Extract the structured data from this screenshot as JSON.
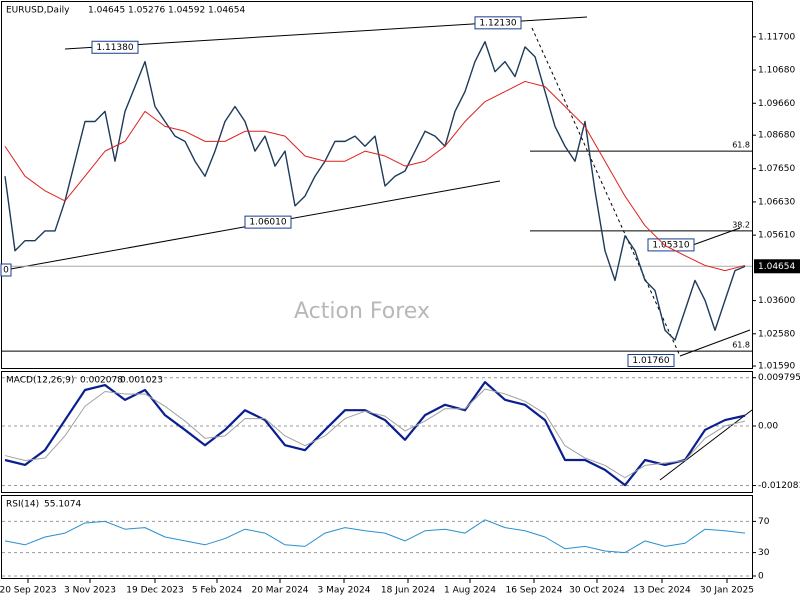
{
  "chart_data": [
    {
      "type": "line",
      "title": "EURUSD,Daily",
      "quote": [
        1.04645,
        1.05276,
        1.04592,
        1.04654
      ],
      "watermark": "Action Forex",
      "xtick_labels": [
        "20 Sep 2023",
        "3 Nov 2023",
        "19 Dec 2023",
        "5 Feb 2024",
        "20 Mar 2024",
        "3 May 2024",
        "18 Jun 2024",
        "1 Aug 2024",
        "16 Sep 2024",
        "30 Oct 2024",
        "13 Dec 2024",
        "30 Jan 2025"
      ],
      "ylim": [
        1.0153,
        1.1277
      ],
      "yticks": [
        {
          "value": 1.117,
          "label": "1.11700"
        },
        {
          "value": 1.1068,
          "label": "1.10680"
        },
        {
          "value": 1.0966,
          "label": "1.09660"
        },
        {
          "value": 1.0868,
          "label": "1.08680"
        },
        {
          "value": 1.0765,
          "label": "1.07650"
        },
        {
          "value": 1.0663,
          "label": "1.06630"
        },
        {
          "value": 1.0561,
          "label": "1.05610"
        },
        {
          "value": 1.036,
          "label": "1.03600"
        },
        {
          "value": 1.0258,
          "label": "1.02580"
        },
        {
          "value": 1.0159,
          "label": "1.01590"
        }
      ],
      "grid": false,
      "last_price": 1.04654,
      "series": [
        {
          "color": "#1e3a5a",
          "values": [
            1.0742,
            1.0513,
            1.0544,
            1.0544,
            1.0574,
            1.0574,
            1.0666,
            1.0788,
            1.091,
            1.091,
            1.0941,
            1.0788,
            1.0941,
            1.1017,
            1.1094,
            1.0956,
            1.091,
            1.0865,
            1.0849,
            1.0788,
            1.0742,
            1.0819,
            1.091,
            1.0956,
            1.091,
            1.0819,
            1.0865,
            1.0773,
            1.0819,
            1.0651,
            1.0681,
            1.0742,
            1.0788,
            1.0849,
            1.0849,
            1.0865,
            1.0834,
            1.0865,
            1.0712,
            1.0742,
            1.0758,
            1.0819,
            1.088,
            1.0865,
            1.0834,
            1.0941,
            1.1002,
            1.1094,
            1.1155,
            1.1063,
            1.1094,
            1.1048,
            1.1139,
            1.1109,
            1.1002,
            1.0895,
            1.0834,
            1.0788,
            1.091,
            1.0697,
            1.0513,
            1.0422,
            1.0559,
            1.0513,
            1.0422,
            1.0391,
            1.0269,
            1.0239,
            1.033,
            1.0422,
            1.0361,
            1.0269,
            1.0361,
            1.0452,
            1.0465
          ]
        },
        {
          "color": "#e0201b",
          "values": [
            1.0834,
            1.0742,
            1.0697,
            1.0666,
            1.0742,
            1.0819,
            1.0849,
            1.0941,
            1.0895,
            1.088,
            1.0849,
            1.0849,
            1.088,
            1.088,
            1.0865,
            1.0804,
            1.0788,
            1.0788,
            1.0819,
            1.0804,
            1.0773,
            1.0788,
            1.0834,
            1.091,
            1.0971,
            1.1002,
            1.1033,
            1.1017,
            1.0956,
            1.0895,
            1.0788,
            1.0681,
            1.059,
            1.0529,
            1.0498,
            1.0468,
            1.0452,
            1.0468
          ]
        }
      ],
      "annotations": [
        {
          "label": "1.11380",
          "value": 1.1138
        },
        {
          "label": "1.12130",
          "value": 1.1213
        },
        {
          "label": "1.06010",
          "value": 1.0601
        },
        {
          "label": "1.05310",
          "value": 1.0531
        },
        {
          "label": "1.01760",
          "value": 1.0176
        },
        {
          "label": "0"
        }
      ],
      "fib_levels": [
        {
          "ratio": 61.8,
          "price": 1.0819
        },
        {
          "ratio": 38.2,
          "price": 1.0574
        },
        {
          "ratio": 61.8,
          "price": 1.0205
        }
      ]
    },
    {
      "type": "line",
      "title": "MACD(12,26,9)",
      "readout": [
        0.002078,
        0.001023
      ],
      "ylim": [
        -0.01339,
        0.01095
      ],
      "yticks": [
        0.009795,
        {
          "value": 0,
          "label": "0.00"
        },
        -0.012081
      ],
      "grid": true,
      "series": [
        {
          "color": "#0a1f8f",
          "values": [
            -0.0069,
            -0.0079,
            -0.0049,
            0.0012,
            0.0073,
            0.0083,
            0.0053,
            0.0073,
            0.0022,
            -0.0008,
            -0.0039,
            -0.0008,
            0.0032,
            0.0012,
            -0.0039,
            -0.0049,
            -0.0008,
            0.0032,
            0.0032,
            0.0012,
            -0.0028,
            0.0022,
            0.0043,
            0.0032,
            0.0089,
            0.0053,
            0.0043,
            0.0012,
            -0.0069,
            -0.0069,
            -0.0089,
            -0.012,
            -0.0069,
            -0.0079,
            -0.0069,
            -0.0008,
            0.0012,
            0.0021
          ]
        },
        {
          "color": "#a0a0a0",
          "values": [
            -0.006,
            -0.007,
            -0.0065,
            -0.002,
            0.004,
            0.007,
            0.0065,
            0.0065,
            0.004,
            0.001,
            -0.0025,
            -0.002,
            0.0015,
            0.0015,
            -0.002,
            -0.004,
            -0.002,
            0.0015,
            0.003,
            0.002,
            -0.001,
            0.001,
            0.0035,
            0.0035,
            0.0075,
            0.0065,
            0.005,
            0.0025,
            -0.004,
            -0.0065,
            -0.008,
            -0.0105,
            -0.008,
            -0.0075,
            -0.007,
            -0.0025,
            0.0,
            0.001
          ]
        }
      ]
    },
    {
      "type": "line",
      "title": "RSI(14)",
      "readout": 55.1074,
      "ylim": [
        0,
        100
      ],
      "yticks": [
        70,
        30,
        0
      ],
      "grid": true,
      "series": [
        {
          "color": "#2a8fd0",
          "values": [
            45,
            40,
            50,
            55,
            68,
            70,
            60,
            62,
            50,
            45,
            40,
            48,
            60,
            55,
            40,
            38,
            55,
            62,
            58,
            55,
            45,
            58,
            60,
            55,
            72,
            62,
            58,
            50,
            35,
            38,
            32,
            30,
            45,
            38,
            42,
            60,
            58,
            55
          ]
        }
      ]
    }
  ]
}
